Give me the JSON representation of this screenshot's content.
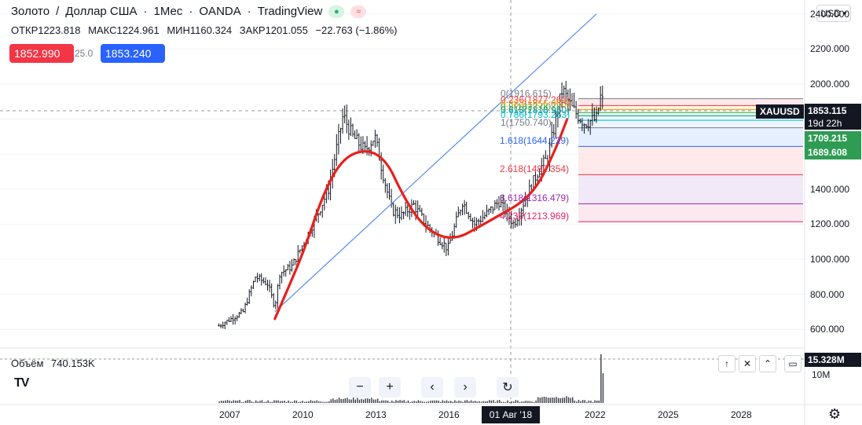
{
  "header": {
    "symbol": "Золото",
    "quote": "Доллар США",
    "interval": "1Мес",
    "exchange": "OANDA",
    "platform": "TradingView",
    "separator": "/",
    "dot": "·"
  },
  "ohlc": {
    "open_label": "ОТКР",
    "open": "1223.818",
    "high_label": "МАКС",
    "high": "1224.961",
    "low_label": "МИН",
    "low": "1160.324",
    "close_label": "ЗАКР",
    "close": "1201.055",
    "change": "−22.763 (−1.86%)"
  },
  "trade": {
    "sell_price": "1852.990",
    "spread": "25.0",
    "buy_price": "1853.240"
  },
  "currency": "USD",
  "price_axis": {
    "labels": [
      "2400.000",
      "2200.000",
      "2000.000",
      "1800.000",
      "1600.000",
      "1400.000",
      "1200.000",
      "1000.000",
      "800.000",
      "600.000"
    ],
    "values": [
      2400,
      2200,
      2000,
      1800,
      1600,
      1400,
      1200,
      1000,
      800,
      600
    ]
  },
  "tags": {
    "symbol": "XAUUSD",
    "last_price": "1853.115",
    "countdown": "19d 22h",
    "level_1": "1709.215",
    "level_2": "1689.608"
  },
  "fib_levels": [
    {
      "text": "0(1916.615)",
      "value": 1916.615,
      "color": "#787b86"
    },
    {
      "text": "0.236(1877.261)",
      "value": 1877.261,
      "color": "#f23645"
    },
    {
      "text": "0.382(1855.063)",
      "value": 1855.063,
      "color": "#ff9800"
    },
    {
      "text": "0.5(1837.007)",
      "value": 1837.007,
      "color": "#4caf50"
    },
    {
      "text": "0.618(1818.950)",
      "value": 1818.95,
      "color": "#089981"
    },
    {
      "text": "0.786(1793.253)",
      "value": 1793.253,
      "color": "#00bcd4"
    },
    {
      "text": "1(1750.740)",
      "value": 1750.74,
      "color": "#787b86"
    },
    {
      "text": "1.618(1644.229)",
      "value": 1644.229,
      "color": "#2962ff"
    },
    {
      "text": "2.618(1482.354)",
      "value": 1482.354,
      "color": "#f23645"
    },
    {
      "text": "3.618(1316.479)",
      "value": 1316.479,
      "color": "#9c27b0"
    },
    {
      "text": "4.236(1213.969)",
      "value": 1213.969,
      "color": "#e91e63"
    }
  ],
  "volume": {
    "label": "Объём",
    "value": "740.153K",
    "last_tag": "15.328M",
    "axis_label": "10M"
  },
  "time_axis": {
    "labels": [
      "2007",
      "2010",
      "2013",
      "2016",
      "2022",
      "2025",
      "2028"
    ],
    "cursor_label": "01 Авг '18"
  },
  "nav": {
    "zoom_out": "−",
    "zoom_in": "+",
    "prev": "‹",
    "next": "›",
    "reset": "↻"
  },
  "pane_buttons": {
    "up": "↑",
    "close": "✕",
    "collapse": "⌃"
  },
  "chart_data": {
    "type": "candlestick",
    "ylim": [
      500,
      2450
    ],
    "price_series_monthly_close_approx": [
      {
        "year": 2006.5,
        "value": 620
      },
      {
        "year": 2007,
        "value": 660
      },
      {
        "year": 2007.5,
        "value": 700
      },
      {
        "year": 2008,
        "value": 900
      },
      {
        "year": 2008.5,
        "value": 860
      },
      {
        "year": 2008.8,
        "value": 730
      },
      {
        "year": 2009,
        "value": 920
      },
      {
        "year": 2009.5,
        "value": 960
      },
      {
        "year": 2010,
        "value": 1100
      },
      {
        "year": 2010.5,
        "value": 1240
      },
      {
        "year": 2011,
        "value": 1400
      },
      {
        "year": 2011.6,
        "value": 1820
      },
      {
        "year": 2012,
        "value": 1700
      },
      {
        "year": 2012.5,
        "value": 1620
      },
      {
        "year": 2012.9,
        "value": 1700
      },
      {
        "year": 2013.3,
        "value": 1450
      },
      {
        "year": 2013.6,
        "value": 1280
      },
      {
        "year": 2014,
        "value": 1250
      },
      {
        "year": 2014.5,
        "value": 1310
      },
      {
        "year": 2015,
        "value": 1200
      },
      {
        "year": 2015.9,
        "value": 1060
      },
      {
        "year": 2016.5,
        "value": 1330
      },
      {
        "year": 2017,
        "value": 1200
      },
      {
        "year": 2017.5,
        "value": 1260
      },
      {
        "year": 2018,
        "value": 1330
      },
      {
        "year": 2018.6,
        "value": 1201
      },
      {
        "year": 2019,
        "value": 1320
      },
      {
        "year": 2019.6,
        "value": 1500
      },
      {
        "year": 2020,
        "value": 1580
      },
      {
        "year": 2020.6,
        "value": 1970
      },
      {
        "year": 2021,
        "value": 1860
      },
      {
        "year": 2021.5,
        "value": 1780
      },
      {
        "year": 2022,
        "value": 1800
      },
      {
        "year": 2022.2,
        "value": 1950
      },
      {
        "year": 2022.3,
        "value": 1853
      }
    ],
    "trendline": [
      {
        "year": 2008.8,
        "value": 700
      },
      {
        "year": 2022.0,
        "value": 2400
      }
    ],
    "volume_spike_year": 2022.2
  }
}
